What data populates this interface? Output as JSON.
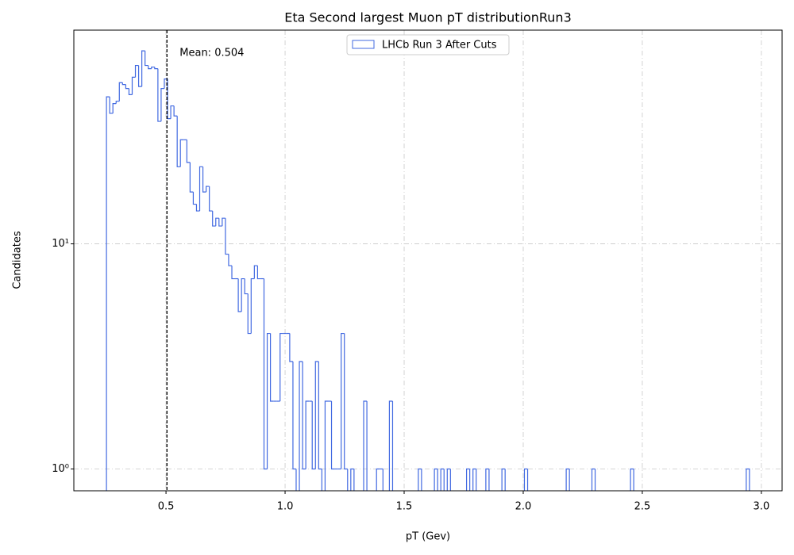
{
  "chart_data": {
    "type": "histogram",
    "title": "Eta Second largest Muon pT distributionRun3",
    "x_label": "pT (Gev)",
    "y_label": "Candidates",
    "log_y": true,
    "grid": true,
    "legend_position": "top-center",
    "series": [
      {
        "name": "LHCb Run 3 After Cuts",
        "color": "#4169e1",
        "bins": [
          0.25,
          0.2635,
          0.277,
          0.2905,
          0.304,
          0.3175,
          0.331,
          0.3445,
          0.358,
          0.3715,
          0.385,
          0.3985,
          0.412,
          0.4255,
          0.439,
          0.4525,
          0.466,
          0.4795,
          0.493,
          0.5065,
          0.52,
          0.5335,
          0.547,
          0.5605,
          0.574,
          0.5875,
          0.601,
          0.6145,
          0.628,
          0.6415,
          0.655,
          0.6685,
          0.682,
          0.6955,
          0.709,
          0.7225,
          0.736,
          0.7495,
          0.763,
          0.7765,
          0.79,
          0.8035,
          0.817,
          0.8305,
          0.844,
          0.8575,
          0.871,
          0.8845,
          0.898,
          0.9115,
          0.925,
          0.9385,
          0.952,
          0.9655,
          0.979,
          0.9925,
          1.006,
          1.0195,
          1.033,
          1.0465,
          1.06,
          1.0735,
          1.087,
          1.1005,
          1.114,
          1.1275,
          1.141,
          1.1545,
          1.168,
          1.1815,
          1.195,
          1.2085,
          1.222,
          1.2355,
          1.249,
          1.2625,
          1.276,
          1.2895,
          1.303,
          1.3165,
          1.33,
          1.3435,
          1.357,
          1.3705,
          1.384,
          1.3975,
          1.411,
          1.4245,
          1.438,
          1.4515,
          1.465,
          1.4785,
          1.492,
          1.5055,
          1.519,
          1.5325,
          1.546,
          1.5595,
          1.573,
          1.5865,
          1.6,
          1.6135,
          1.627,
          1.6405,
          1.654,
          1.6675,
          1.681,
          1.6945,
          1.708,
          1.7215,
          1.735,
          1.7485,
          1.762,
          1.7755,
          1.789,
          1.8025,
          1.816,
          1.8295,
          1.843,
          1.8565,
          1.87,
          1.8835,
          1.897,
          1.9105,
          1.924,
          1.9375,
          1.951,
          1.9645,
          1.978,
          1.9915,
          2.005,
          2.0185,
          2.032,
          2.0455,
          2.059,
          2.0725,
          2.086,
          2.0995,
          2.113,
          2.1265,
          2.14,
          2.1535,
          2.167,
          2.1805,
          2.194,
          2.2075,
          2.221,
          2.2345,
          2.248,
          2.2615,
          2.275,
          2.2885,
          2.302,
          2.3155,
          2.329,
          2.3425,
          2.356,
          2.3695,
          2.383,
          2.3965,
          2.41,
          2.4235,
          2.437,
          2.4505,
          2.464,
          2.4775,
          2.491,
          2.5045,
          2.518,
          2.5315,
          2.545,
          2.5585,
          2.572,
          2.5855,
          2.599,
          2.6125,
          2.626,
          2.6395,
          2.653,
          2.6665,
          2.68,
          2.6935,
          2.707,
          2.7205,
          2.734,
          2.7475,
          2.761,
          2.7745,
          2.788,
          2.8015,
          2.815,
          2.8285,
          2.842,
          2.8555,
          2.869,
          2.8825,
          2.896,
          2.9095,
          2.923,
          2.9365,
          2.95
        ],
        "values": [
          45,
          38,
          42,
          43,
          52,
          51,
          49,
          46,
          55,
          62,
          50,
          72,
          62,
          60,
          61,
          60,
          35,
          49,
          54,
          36,
          41,
          37,
          22,
          29,
          29,
          23,
          17,
          15,
          14,
          22,
          17,
          18,
          14,
          12,
          13,
          12,
          13,
          9,
          8,
          7,
          7,
          5,
          7,
          6,
          4,
          7,
          8,
          7,
          7,
          1,
          4,
          2,
          2,
          2,
          4,
          4,
          4,
          3,
          1,
          0,
          3,
          1,
          2,
          2,
          1,
          3,
          1,
          0,
          2,
          2,
          1,
          1,
          1,
          4,
          1,
          0,
          1,
          0,
          0,
          0,
          2,
          0,
          0,
          0,
          1,
          1,
          0,
          0,
          2,
          0,
          0,
          0,
          0,
          0,
          0,
          0,
          0,
          1,
          0,
          0,
          0,
          0,
          1,
          0,
          1,
          0,
          1,
          0,
          0,
          0,
          0,
          0,
          1,
          0,
          1,
          0,
          0,
          0,
          1,
          0,
          0,
          0,
          0,
          1,
          0,
          0,
          0,
          0,
          0,
          0,
          1,
          0,
          0,
          0,
          0,
          0,
          0,
          0,
          0,
          0,
          0,
          0,
          0,
          1,
          0,
          0,
          0,
          0,
          0,
          0,
          0,
          1,
          0,
          0,
          0,
          0,
          0,
          0,
          0,
          0,
          0,
          0,
          0,
          1,
          0,
          0,
          0,
          0,
          0,
          0,
          0,
          0,
          0,
          0,
          0,
          0,
          0,
          0,
          0,
          0,
          0,
          0,
          0,
          0,
          0,
          0,
          0,
          0,
          0,
          0,
          0,
          0,
          0,
          0,
          0,
          0,
          0,
          0,
          0,
          1
        ]
      }
    ],
    "mean": 0.504,
    "mean_label": "Mean: 0.504",
    "xlim": [
      0.113,
      3.087
    ],
    "ylim": [
      0.8,
      89
    ],
    "xticks": [
      0.5,
      {
        "value": 1,
        "label": "1.0"
      },
      1.5,
      {
        "value": 2,
        "label": "2.0"
      },
      2.5,
      {
        "value": 3,
        "label": "3.0"
      }
    ],
    "yticks": [
      {
        "value": 1,
        "label": "10⁰"
      },
      {
        "value": 10,
        "label": "10¹"
      }
    ]
  }
}
